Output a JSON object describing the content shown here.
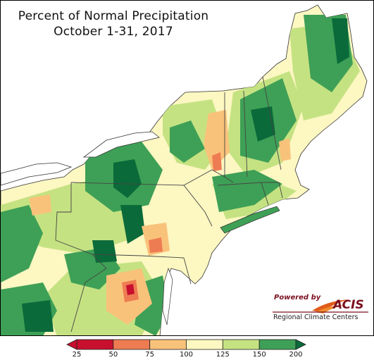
{
  "header": {
    "title": "Percent of Normal Precipitation",
    "subtitle": "October 1-31, 2017"
  },
  "logo": {
    "powered_by": "Powered by",
    "brand": "ACIS",
    "org": "Regional Climate Centers"
  },
  "legend": {
    "ticks": [
      "25",
      "50",
      "75",
      "100",
      "125",
      "150",
      "200"
    ],
    "colors": [
      "#c8102e",
      "#ee7c52",
      "#f9c27a",
      "#fdf7c2",
      "#c5e282",
      "#3ea056",
      "#0b6a3a"
    ]
  },
  "map": {
    "land_color": "#fdf7c2",
    "water_color": "#ffffff",
    "boundary_color": "#555555"
  }
}
